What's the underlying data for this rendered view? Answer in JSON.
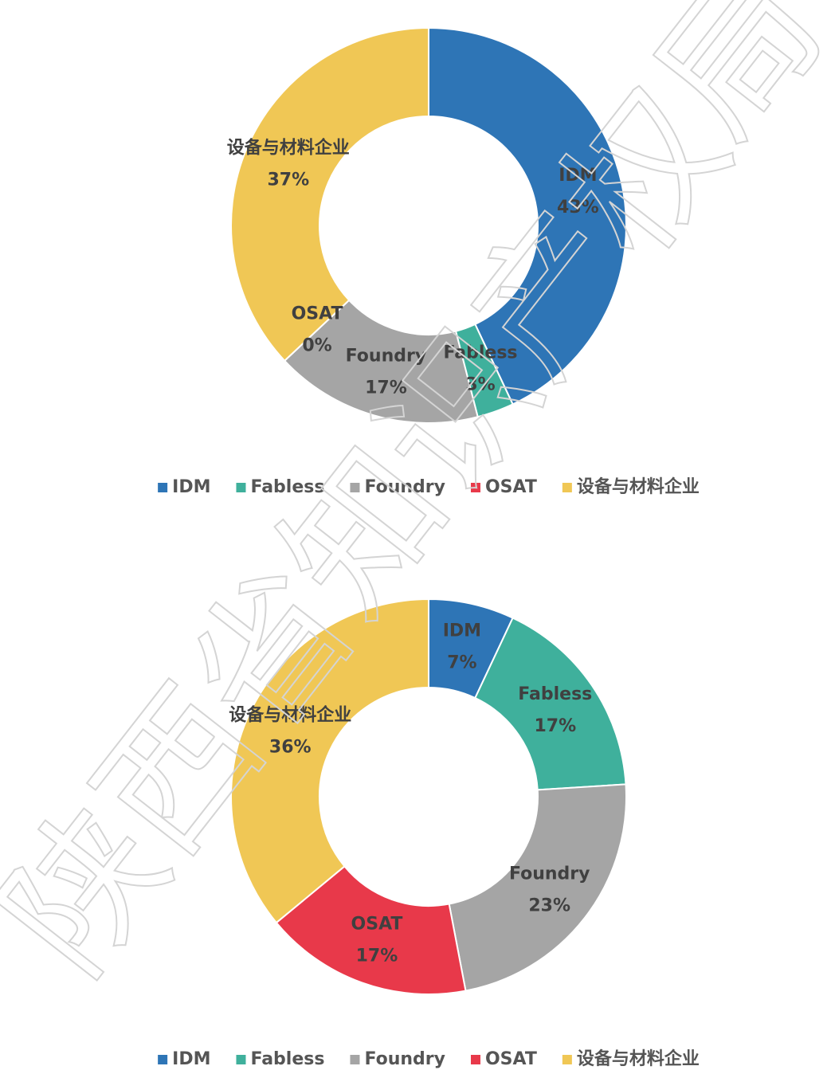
{
  "watermark": "陕西省知识产权局",
  "chart_data": [
    {
      "type": "donut",
      "categories": [
        "IDM",
        "Fabless",
        "Foundry",
        "OSAT",
        "设备与材料企业"
      ],
      "values": [
        43,
        3,
        17,
        0,
        37
      ],
      "value_labels": [
        "43%",
        "3%",
        "17%",
        "0%",
        "37%"
      ],
      "colors": [
        "#2e75b6",
        "#3fb09c",
        "#a5a5a5",
        "#e8394a",
        "#f0c755"
      ],
      "legend": "bottom"
    },
    {
      "type": "donut",
      "categories": [
        "IDM",
        "Fabless",
        "Foundry",
        "OSAT",
        "设备与材料企业"
      ],
      "values": [
        7,
        17,
        23,
        17,
        36
      ],
      "value_labels": [
        "7%",
        "17%",
        "23%",
        "17%",
        "36%"
      ],
      "colors": [
        "#2e75b6",
        "#3fb09c",
        "#a5a5a5",
        "#e8394a",
        "#f0c755"
      ],
      "legend": "bottom"
    }
  ]
}
